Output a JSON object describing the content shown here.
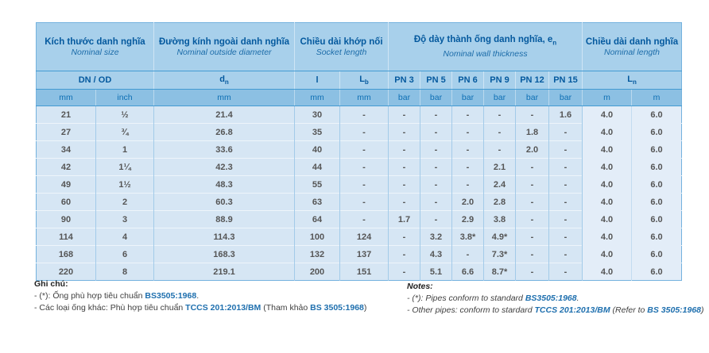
{
  "table": {
    "groups": [
      {
        "vn": "Kích thước danh nghĩa",
        "en": "Nominal size"
      },
      {
        "vn": "Đường kính ngoài danh nghĩa",
        "en": "Nominal outside diameter"
      },
      {
        "vn": "Chiều dài khớp nối",
        "en": "Socket length"
      },
      {
        "vn": "Độ dày thành ống danh nghĩa, e",
        "vn_sub": "n",
        "en": "Nominal wall thickness"
      },
      {
        "vn": "Chiều dài danh nghĩa",
        "en": "Nominal length"
      }
    ],
    "sub": {
      "dn_od": "DN / OD",
      "d_base": "d",
      "d_sub": "n",
      "l": "l",
      "lb_base": "L",
      "lb_sub": "b",
      "pn": [
        "PN 3",
        "PN 5",
        "PN 6",
        "PN 9",
        "PN 12",
        "PN 15"
      ],
      "ln_base": "L",
      "ln_sub": "n"
    },
    "units": [
      "mm",
      "inch",
      "mm",
      "mm",
      "mm",
      "bar",
      "bar",
      "bar",
      "bar",
      "bar",
      "bar",
      "m",
      "m"
    ],
    "rows": [
      [
        "21",
        "½",
        "21.4",
        "30",
        "-",
        "-",
        "-",
        "-",
        "-",
        "-",
        "1.6",
        "4.0",
        "6.0"
      ],
      [
        "27",
        "¾",
        "26.8",
        "35",
        "-",
        "-",
        "-",
        "-",
        "-",
        "1.8",
        "-",
        "4.0",
        "6.0"
      ],
      [
        "34",
        "1",
        "33.6",
        "40",
        "-",
        "-",
        "-",
        "-",
        "-",
        "2.0",
        "-",
        "4.0",
        "6.0"
      ],
      [
        "42",
        "1¼",
        "42.3",
        "44",
        "-",
        "-",
        "-",
        "-",
        "2.1",
        "-",
        "-",
        "4.0",
        "6.0"
      ],
      [
        "49",
        "1½",
        "48.3",
        "55",
        "-",
        "-",
        "-",
        "-",
        "2.4",
        "-",
        "-",
        "4.0",
        "6.0"
      ],
      [
        "60",
        "2",
        "60.3",
        "63",
        "-",
        "-",
        "-",
        "2.0",
        "2.8",
        "-",
        "-",
        "4.0",
        "6.0"
      ],
      [
        "90",
        "3",
        "88.9",
        "64",
        "-",
        "1.7",
        "-",
        "2.9",
        "3.8",
        "-",
        "-",
        "4.0",
        "6.0"
      ],
      [
        "114",
        "4",
        "114.3",
        "100",
        "124",
        "-",
        "3.2",
        "3.8*",
        "4.9*",
        "-",
        "-",
        "4.0",
        "6.0"
      ],
      [
        "168",
        "6",
        "168.3",
        "132",
        "137",
        "-",
        "4.3",
        "-",
        "7.3*",
        "-",
        "-",
        "4.0",
        "6.0"
      ],
      [
        "220",
        "8",
        "219.1",
        "200",
        "151",
        "-",
        "5.1",
        "6.6",
        "8.7*",
        "-",
        "-",
        "4.0",
        "6.0"
      ]
    ]
  },
  "notes_vn": {
    "title": "Ghi chú:",
    "line1_pre": "- (*): Ống phù hợp tiêu chuẩn ",
    "line1_std": "BS3505:1968",
    "line1_post": ".",
    "line2_pre": "- Các loại ống khác: Phù hợp tiêu chuẩn ",
    "line2_std": "TCCS 201:2013/BM",
    "line2_mid": " (Tham khảo ",
    "line2_std2": "BS 3505:1968",
    "line2_post": ")"
  },
  "notes_en": {
    "title": "Notes:",
    "line1_pre": "- (*): Pipes conform to standard ",
    "line1_std": "BS3505:1968",
    "line1_post": ".",
    "line2_pre": "- Other pipes: conform to stardard ",
    "line2_std": "TCCS 201:2013/BM",
    "line2_mid": " (Refer to ",
    "line2_std2": "BS 3505:1968",
    "line2_post": ")"
  },
  "colors": {
    "header_bg": "#a8d0eb",
    "units_bg": "#8cc0e3",
    "body_bg": "#d6e6f4",
    "length_col_bg": "#e3edf8",
    "header_text": "#04599e",
    "units_text": "#0e6fb4",
    "body_text": "#555555",
    "line_blue": "#449bd2",
    "standard_ref": "#1e6fae"
  }
}
